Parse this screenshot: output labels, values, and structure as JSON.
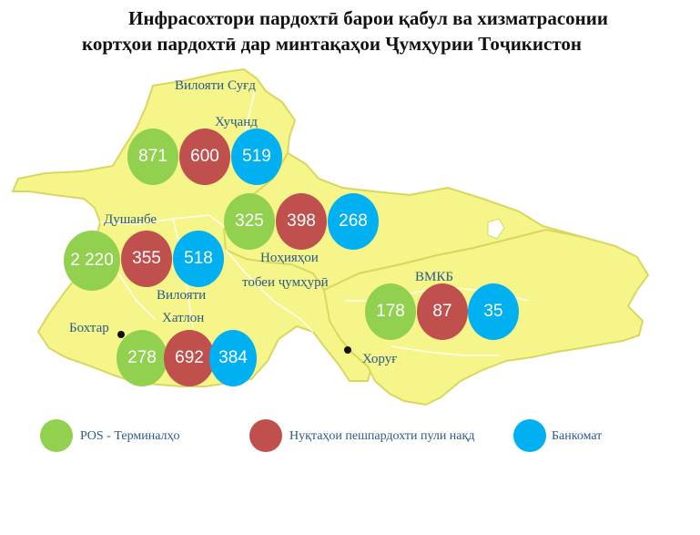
{
  "title": {
    "line1": "Инфрасохтори пардохтӣ барои қабул ва хизматрасонии",
    "line2": "кортҳои пардохтӣ дар минтақаҳои Ҷумҳурии Тоҷикистон"
  },
  "colors": {
    "map_fill": "#f5f58a",
    "map_stroke": "#d8d860",
    "pos": "#92d050",
    "cash": "#c0504d",
    "atm": "#00b0f0",
    "label_text": "#2a5a8a"
  },
  "labels": {
    "sughd": "Вилояти Суғд",
    "khujand": "Хуҷанд",
    "dushanbe": "Душанбе",
    "nohiyahoi_1": "Ноҳияҳои",
    "nohiyahoi_2": "тобеи ҷумҳурӣ",
    "khatlon_1": "Вилояти",
    "khatlon_2": "Хатлон",
    "bokhtar": "Бохтар",
    "vmkb": "ВМКБ",
    "khorugh": "Хоруғ"
  },
  "regions": {
    "sughd": {
      "pos": "871",
      "cash": "600",
      "atm": "519"
    },
    "rrp": {
      "pos": "325",
      "cash": "398",
      "atm": "268"
    },
    "dushanbe": {
      "pos": "2 220",
      "cash": "355",
      "atm": "518"
    },
    "khatlon": {
      "pos": "278",
      "cash": "692",
      "atm": "384"
    },
    "vmkb": {
      "pos": "178",
      "cash": "87",
      "atm": "35"
    }
  },
  "legend": {
    "pos": "POS - Терминалҳо",
    "cash": "Нуқтаҳои пешпардохти пули нақд",
    "atm": "Банкомат"
  }
}
